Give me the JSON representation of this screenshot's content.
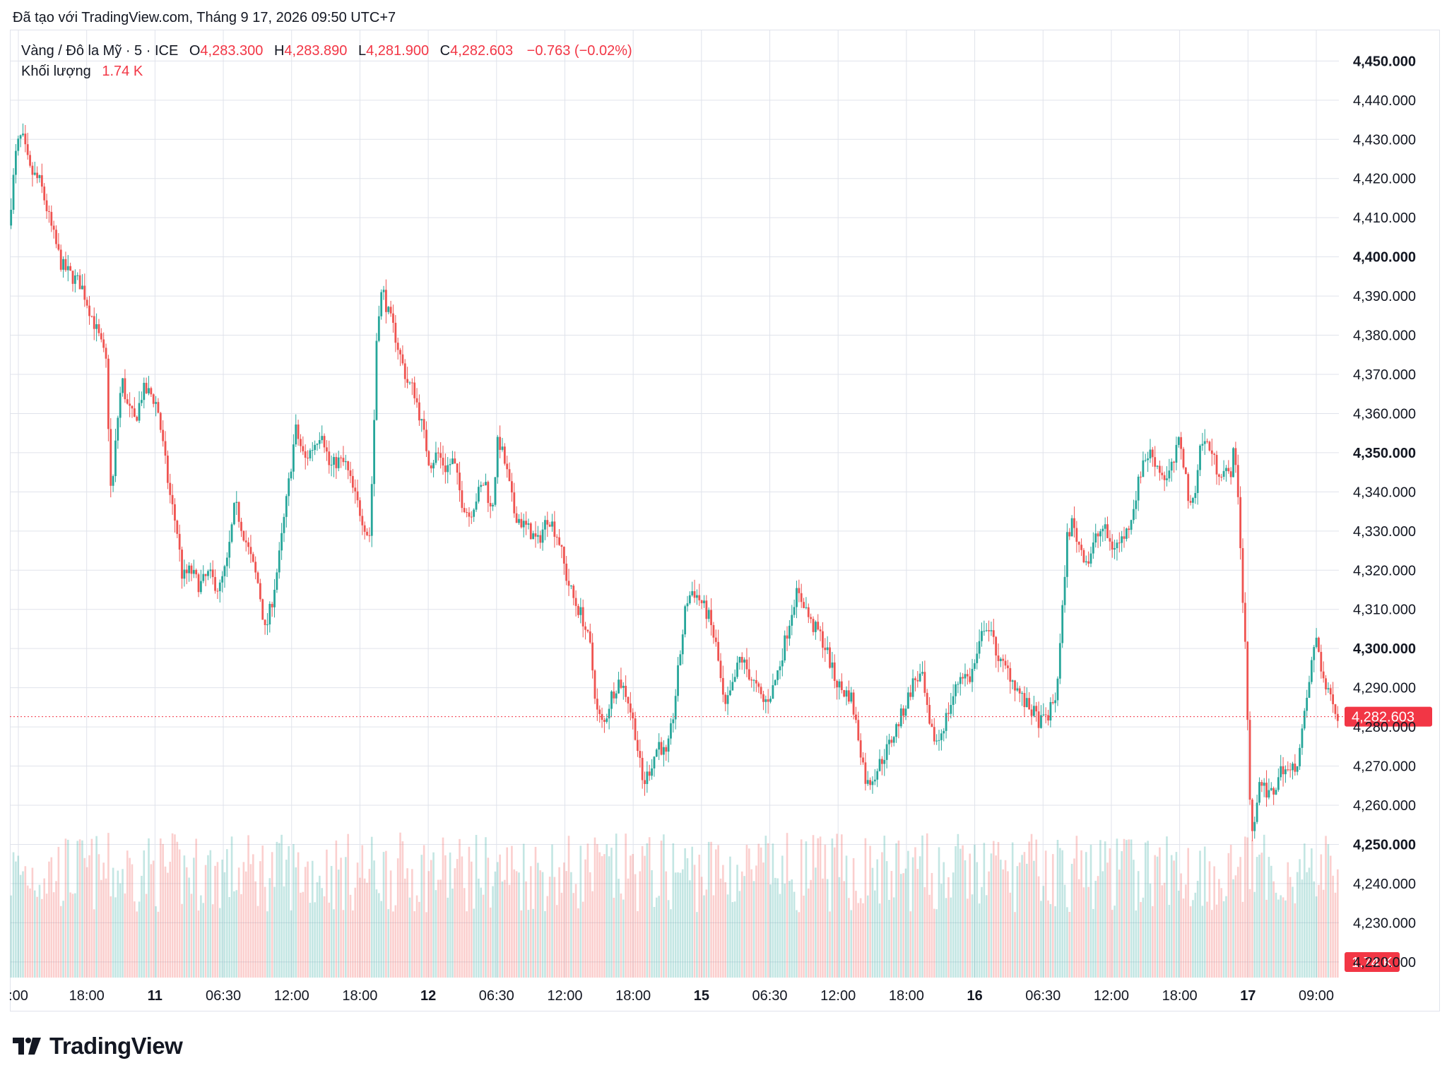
{
  "header": {
    "caption": "Đã tạo với TradingView.com, Tháng 9 17, 2026 09:50 UTC+7"
  },
  "legend": {
    "symbol": "Vàng / Đô la Mỹ · 5 · ICE",
    "o_label": "O",
    "o_value": "4,283.300",
    "h_label": "H",
    "h_value": "4,283.890",
    "l_label": "L",
    "l_value": "4,281.900",
    "c_label": "C",
    "c_value": "4,282.603",
    "change": "−0.763 (−0.02%)",
    "volume_label": "Khối lượng",
    "volume_value": "1.74 K"
  },
  "footer": {
    "brand": "TradingView"
  },
  "colors": {
    "up": "#26a69a",
    "down": "#ef5350",
    "last_price_tag": "#f23645",
    "grid": "#e0e3eb"
  },
  "chart_data": {
    "type": "candlestick",
    "symbol": "Vàng / Đô la Mỹ",
    "interval": "5",
    "exchange": "ICE",
    "y_axis": {
      "ticks": [
        "4,450.000",
        "4,440.000",
        "4,430.000",
        "4,420.000",
        "4,410.000",
        "4,400.000",
        "4,390.000",
        "4,380.000",
        "4,370.000",
        "4,360.000",
        "4,350.000",
        "4,340.000",
        "4,330.000",
        "4,320.000",
        "4,310.000",
        "4,300.000",
        "4,290.000",
        "4,280.000",
        "4,270.000",
        "4,260.000",
        "4,250.000",
        "4,240.000",
        "4,230.000",
        "4,220.000"
      ],
      "bold_ticks": [
        "4,450.000",
        "4,400.000",
        "4,350.000",
        "4,300.000",
        "4,250.000"
      ],
      "range": [
        4216.0,
        4458.0
      ]
    },
    "x_axis": {
      "ticks": [
        {
          "label": ":00",
          "bold": false
        },
        {
          "label": "18:00",
          "bold": false
        },
        {
          "label": "11",
          "bold": true
        },
        {
          "label": "06:30",
          "bold": false
        },
        {
          "label": "12:00",
          "bold": false
        },
        {
          "label": "18:00",
          "bold": false
        },
        {
          "label": "12",
          "bold": true
        },
        {
          "label": "06:30",
          "bold": false
        },
        {
          "label": "12:00",
          "bold": false
        },
        {
          "label": "18:00",
          "bold": false
        },
        {
          "label": "15",
          "bold": true
        },
        {
          "label": "06:30",
          "bold": false
        },
        {
          "label": "12:00",
          "bold": false
        },
        {
          "label": "18:00",
          "bold": false
        },
        {
          "label": "16",
          "bold": true
        },
        {
          "label": "06:30",
          "bold": false
        },
        {
          "label": "12:00",
          "bold": false
        },
        {
          "label": "18:00",
          "bold": false
        },
        {
          "label": "17",
          "bold": true
        },
        {
          "label": "09:00",
          "bold": false
        }
      ]
    },
    "price_path": [
      [
        0.0,
        4408
      ],
      [
        0.006,
        4428
      ],
      [
        0.01,
        4431
      ],
      [
        0.016,
        4422
      ],
      [
        0.024,
        4419
      ],
      [
        0.032,
        4408
      ],
      [
        0.04,
        4398
      ],
      [
        0.048,
        4395
      ],
      [
        0.055,
        4393
      ],
      [
        0.062,
        4386
      ],
      [
        0.069,
        4379
      ],
      [
        0.074,
        4373
      ],
      [
        0.078,
        4337
      ],
      [
        0.082,
        4356
      ],
      [
        0.086,
        4369
      ],
      [
        0.09,
        4362
      ],
      [
        0.096,
        4358
      ],
      [
        0.102,
        4366
      ],
      [
        0.108,
        4365
      ],
      [
        0.113,
        4362
      ],
      [
        0.118,
        4350
      ],
      [
        0.122,
        4340
      ],
      [
        0.128,
        4330
      ],
      [
        0.132,
        4318
      ],
      [
        0.138,
        4320
      ],
      [
        0.145,
        4316
      ],
      [
        0.152,
        4319
      ],
      [
        0.16,
        4315
      ],
      [
        0.166,
        4322
      ],
      [
        0.172,
        4337
      ],
      [
        0.178,
        4330
      ],
      [
        0.184,
        4323
      ],
      [
        0.19,
        4316
      ],
      [
        0.195,
        4304
      ],
      [
        0.2,
        4312
      ],
      [
        0.205,
        4322
      ],
      [
        0.212,
        4340
      ],
      [
        0.218,
        4356
      ],
      [
        0.225,
        4348
      ],
      [
        0.232,
        4352
      ],
      [
        0.238,
        4356
      ],
      [
        0.244,
        4346
      ],
      [
        0.25,
        4348
      ],
      [
        0.256,
        4347
      ],
      [
        0.262,
        4340
      ],
      [
        0.268,
        4334
      ],
      [
        0.274,
        4328
      ],
      [
        0.277,
        4350
      ],
      [
        0.28,
        4384
      ],
      [
        0.284,
        4392
      ],
      [
        0.288,
        4386
      ],
      [
        0.293,
        4381
      ],
      [
        0.298,
        4374
      ],
      [
        0.303,
        4368
      ],
      [
        0.308,
        4366
      ],
      [
        0.314,
        4357
      ],
      [
        0.32,
        4347
      ],
      [
        0.326,
        4350
      ],
      [
        0.332,
        4346
      ],
      [
        0.338,
        4348
      ],
      [
        0.344,
        4338
      ],
      [
        0.35,
        4334
      ],
      [
        0.356,
        4339
      ],
      [
        0.362,
        4343
      ],
      [
        0.367,
        4334
      ],
      [
        0.372,
        4354
      ],
      [
        0.378,
        4346
      ],
      [
        0.384,
        4335
      ],
      [
        0.39,
        4332
      ],
      [
        0.396,
        4330
      ],
      [
        0.402,
        4327
      ],
      [
        0.41,
        4334
      ],
      [
        0.418,
        4328
      ],
      [
        0.424,
        4318
      ],
      [
        0.43,
        4312
      ],
      [
        0.436,
        4308
      ],
      [
        0.442,
        4300
      ],
      [
        0.447,
        4284
      ],
      [
        0.452,
        4280
      ],
      [
        0.458,
        4288
      ],
      [
        0.464,
        4292
      ],
      [
        0.47,
        4288
      ],
      [
        0.476,
        4279
      ],
      [
        0.482,
        4265
      ],
      [
        0.488,
        4270
      ],
      [
        0.494,
        4276
      ],
      [
        0.5,
        4272
      ],
      [
        0.505,
        4283
      ],
      [
        0.51,
        4298
      ],
      [
        0.515,
        4312
      ],
      [
        0.52,
        4315
      ],
      [
        0.526,
        4312
      ],
      [
        0.532,
        4308
      ],
      [
        0.538,
        4300
      ],
      [
        0.544,
        4284
      ],
      [
        0.55,
        4290
      ],
      [
        0.556,
        4298
      ],
      [
        0.562,
        4294
      ],
      [
        0.568,
        4290
      ],
      [
        0.574,
        4286
      ],
      [
        0.58,
        4289
      ],
      [
        0.586,
        4296
      ],
      [
        0.592,
        4305
      ],
      [
        0.598,
        4314
      ],
      [
        0.604,
        4312
      ],
      [
        0.61,
        4306
      ],
      [
        0.616,
        4304
      ],
      [
        0.622,
        4299
      ],
      [
        0.628,
        4292
      ],
      [
        0.634,
        4289
      ],
      [
        0.64,
        4288
      ],
      [
        0.646,
        4277
      ],
      [
        0.652,
        4265
      ],
      [
        0.658,
        4268
      ],
      [
        0.664,
        4272
      ],
      [
        0.67,
        4276
      ],
      [
        0.676,
        4281
      ],
      [
        0.682,
        4286
      ],
      [
        0.688,
        4292
      ],
      [
        0.694,
        4293
      ],
      [
        0.7,
        4279
      ],
      [
        0.706,
        4276
      ],
      [
        0.712,
        4282
      ],
      [
        0.718,
        4288
      ],
      [
        0.724,
        4294
      ],
      [
        0.73,
        4292
      ],
      [
        0.736,
        4298
      ],
      [
        0.742,
        4307
      ],
      [
        0.748,
        4302
      ],
      [
        0.754,
        4296
      ],
      [
        0.76,
        4294
      ],
      [
        0.766,
        4290
      ],
      [
        0.772,
        4286
      ],
      [
        0.778,
        4284
      ],
      [
        0.784,
        4281
      ],
      [
        0.79,
        4283
      ],
      [
        0.796,
        4288
      ],
      [
        0.8,
        4305
      ],
      [
        0.804,
        4328
      ],
      [
        0.808,
        4332
      ],
      [
        0.814,
        4326
      ],
      [
        0.82,
        4322
      ],
      [
        0.826,
        4328
      ],
      [
        0.832,
        4331
      ],
      [
        0.838,
        4326
      ],
      [
        0.844,
        4327
      ],
      [
        0.85,
        4330
      ],
      [
        0.856,
        4338
      ],
      [
        0.862,
        4348
      ],
      [
        0.868,
        4350
      ],
      [
        0.874,
        4346
      ],
      [
        0.88,
        4343
      ],
      [
        0.886,
        4348
      ],
      [
        0.89,
        4354
      ],
      [
        0.894,
        4345
      ],
      [
        0.898,
        4335
      ],
      [
        0.902,
        4342
      ],
      [
        0.906,
        4353
      ],
      [
        0.912,
        4352
      ],
      [
        0.918,
        4346
      ],
      [
        0.924,
        4345
      ],
      [
        0.928,
        4344
      ],
      [
        0.931,
        4350
      ],
      [
        0.934,
        4342
      ],
      [
        0.937,
        4318
      ],
      [
        0.94,
        4300
      ],
      [
        0.943,
        4262
      ],
      [
        0.946,
        4250
      ],
      [
        0.95,
        4268
      ],
      [
        0.956,
        4262
      ],
      [
        0.962,
        4264
      ],
      [
        0.968,
        4270
      ],
      [
        0.974,
        4268
      ],
      [
        0.98,
        4272
      ],
      [
        0.985,
        4283
      ],
      [
        0.99,
        4296
      ],
      [
        0.994,
        4303
      ],
      [
        0.998,
        4294
      ],
      [
        1.002,
        4288
      ],
      [
        1.006,
        4288
      ],
      [
        1.01,
        4282.6
      ]
    ],
    "last_price": "4,282.603",
    "last_volume": "1.74 K",
    "grid": true
  }
}
